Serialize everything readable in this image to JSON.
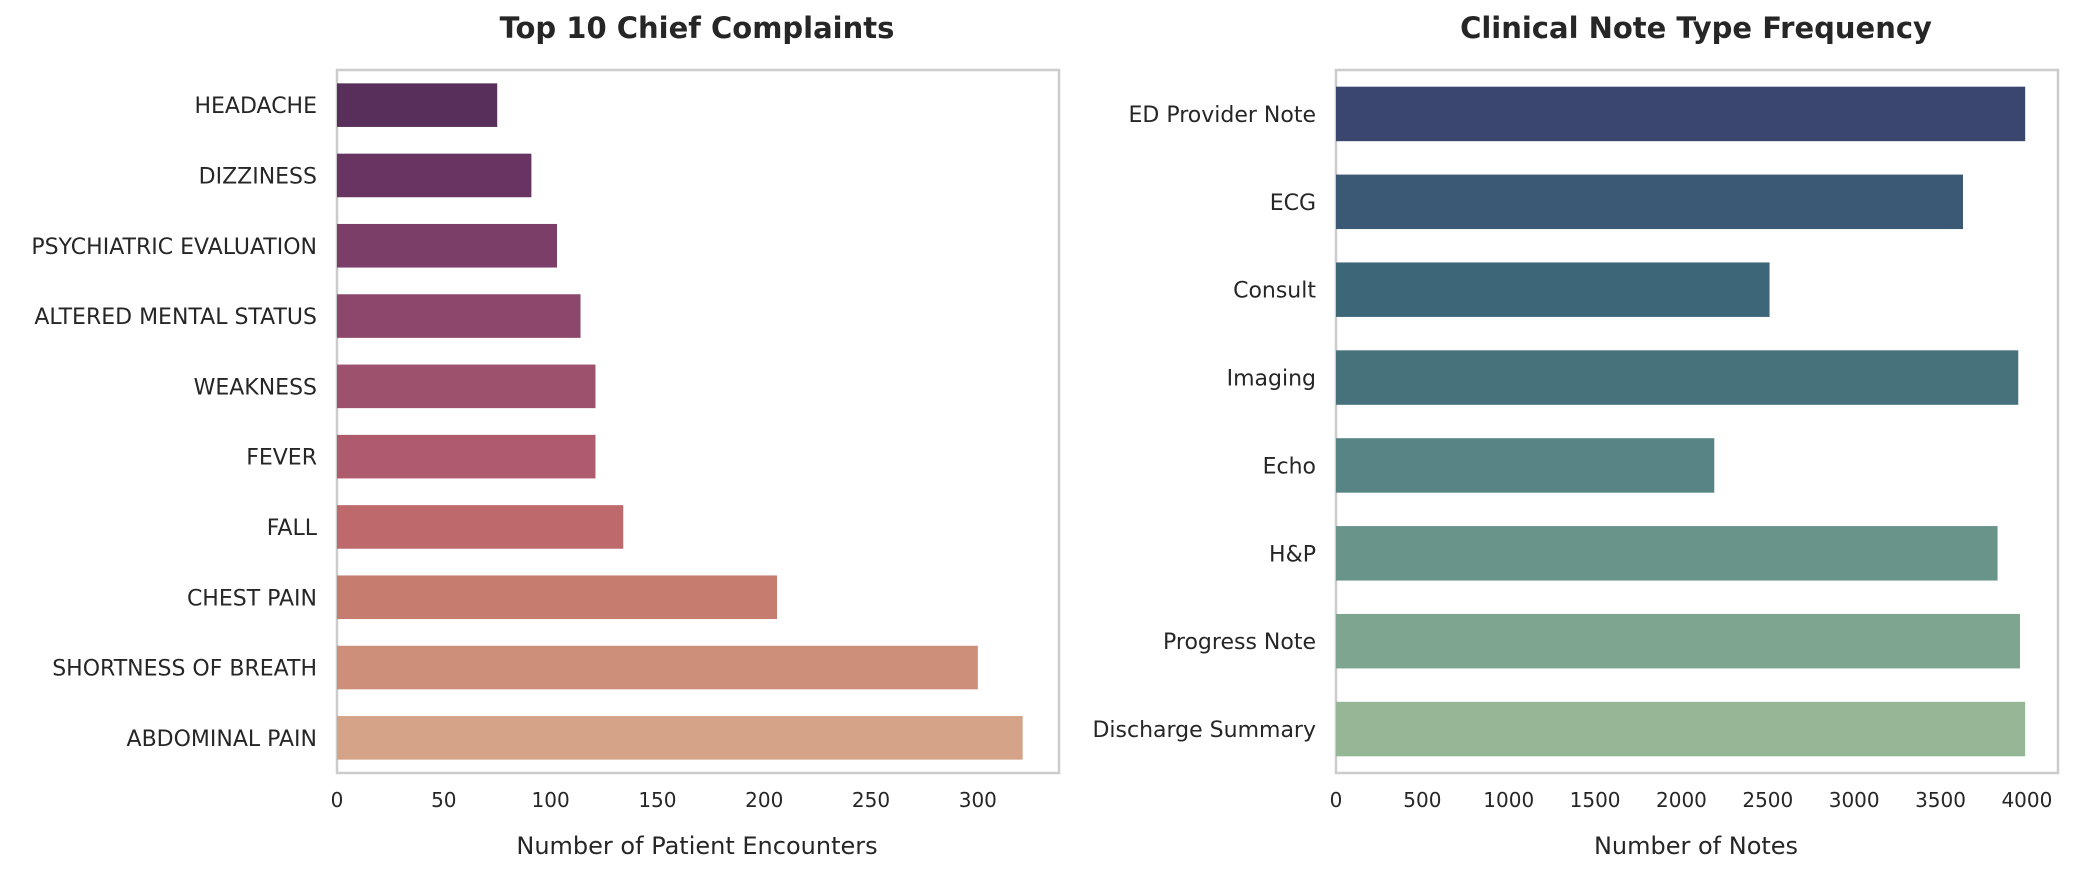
{
  "chart_data": [
    {
      "type": "bar",
      "orientation": "horizontal",
      "title": "Top 10 Chief Complaints",
      "xlabel": "Number of Patient Encounters",
      "ylabel": "",
      "xlim": [
        0,
        338
      ],
      "xticks": [
        0,
        50,
        100,
        150,
        200,
        250,
        300
      ],
      "grid": false,
      "categories": [
        "HEADACHE",
        "DIZZINESS",
        "PSYCHIATRIC EVALUATION",
        "ALTERED MENTAL STATUS",
        "WEAKNESS",
        "FEVER",
        "FALL",
        "CHEST PAIN",
        "SHORTNESS OF BREATH",
        "ABDOMINAL PAIN"
      ],
      "values": [
        75,
        91,
        103,
        114,
        121,
        121,
        134,
        206,
        300,
        321
      ],
      "colors": [
        "#582f5b",
        "#683563",
        "#7a3e69",
        "#8b476c",
        "#9d516d",
        "#af5b6e",
        "#be6a6c",
        "#c77c70",
        "#cd8f7a",
        "#d4a388"
      ]
    },
    {
      "type": "bar",
      "orientation": "horizontal",
      "title": "Clinical Note Type Frequency",
      "xlabel": "Number of Notes",
      "ylabel": "",
      "xlim": [
        0,
        4180
      ],
      "xticks": [
        0,
        500,
        1000,
        1500,
        2000,
        2500,
        3000,
        3500,
        4000
      ],
      "grid": false,
      "categories": [
        "ED Provider Note",
        "ECG",
        "Consult",
        "Imaging",
        "Echo",
        "H&P",
        "Progress Note",
        "Discharge Summary"
      ],
      "values": [
        3990,
        3630,
        2510,
        3950,
        2190,
        3830,
        3960,
        3990
      ],
      "colors": [
        "#3a466e",
        "#3b5874",
        "#3d6678",
        "#47727c",
        "#588485",
        "#68948a",
        "#7ea58f",
        "#96b796"
      ]
    }
  ]
}
